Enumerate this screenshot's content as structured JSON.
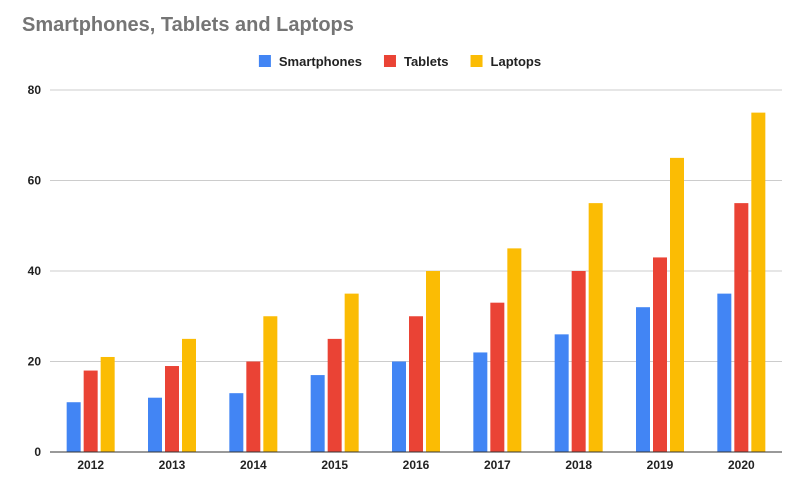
{
  "chart_data": {
    "type": "bar",
    "title": "Smartphones, Tablets and Laptops",
    "xlabel": "",
    "ylabel": "",
    "categories": [
      "2012",
      "2013",
      "2014",
      "2015",
      "2016",
      "2017",
      "2018",
      "2019",
      "2020"
    ],
    "series": [
      {
        "name": "Smartphones",
        "color": "#4285f4",
        "values": [
          11,
          12,
          13,
          17,
          20,
          22,
          26,
          32,
          35
        ]
      },
      {
        "name": "Tablets",
        "color": "#ea4335",
        "values": [
          18,
          19,
          20,
          25,
          30,
          33,
          40,
          43,
          55
        ]
      },
      {
        "name": "Laptops",
        "color": "#fbbc04",
        "values": [
          21,
          25,
          30,
          35,
          40,
          45,
          55,
          65,
          75
        ]
      }
    ],
    "ylim": [
      0,
      80
    ],
    "yticks": [
      0,
      20,
      40,
      60,
      80
    ],
    "grid": true,
    "legend_position": "top-center"
  }
}
